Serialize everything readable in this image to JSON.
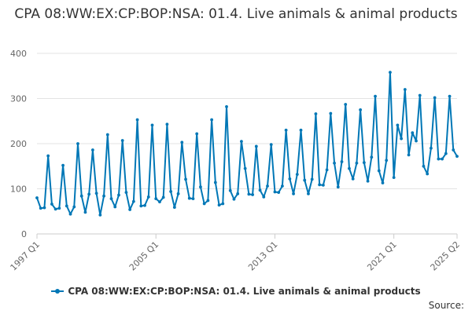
{
  "chart_data": {
    "type": "line",
    "title": "CPA 08:WW:EX:CP:BOP:NSA: 01.4. Live animals & animal products",
    "xlabel": "",
    "ylabel": "",
    "ylim": [
      0,
      400
    ],
    "yticks": [
      0,
      100,
      200,
      300,
      400
    ],
    "xtick_labels": [
      "1997 Q1",
      "2005 Q1",
      "2013 Q1",
      "2021 Q1",
      "2025 Q2"
    ],
    "grid": true,
    "legend_position": "bottom",
    "series_color": "#0077b6",
    "series": [
      {
        "name": "CPA 08:WW:EX:CP:BOP:NSA: 01.4. Live animals & animal products",
        "start": "1997 Q1",
        "frequency": "quarterly",
        "values": [
          80,
          57,
          58,
          173,
          66,
          55,
          57,
          152,
          62,
          44,
          60,
          200,
          84,
          48,
          88,
          186,
          90,
          42,
          84,
          220,
          78,
          60,
          86,
          207,
          92,
          54,
          72,
          253,
          62,
          63,
          82,
          241,
          78,
          71,
          81,
          243,
          94,
          59,
          89,
          203,
          121,
          79,
          78,
          222,
          104,
          67,
          74,
          253,
          114,
          64,
          67,
          282,
          96,
          77,
          89,
          205,
          145,
          88,
          87,
          194,
          97,
          82,
          106,
          198,
          93,
          92,
          106,
          230,
          122,
          89,
          132,
          230,
          119,
          89,
          121,
          266,
          109,
          108,
          142,
          267,
          157,
          104,
          160,
          287,
          145,
          122,
          157,
          275,
          158,
          117,
          170,
          305,
          140,
          113,
          163,
          358,
          125,
          241,
          211,
          320,
          175,
          224,
          206,
          307,
          150,
          133,
          190,
          302,
          166,
          166,
          178,
          305,
          186,
          172
        ]
      }
    ]
  },
  "legend": {
    "label": "CPA 08:WW:EX:CP:BOP:NSA: 01.4. Live animals & animal products"
  },
  "source": {
    "label": "Source:"
  }
}
